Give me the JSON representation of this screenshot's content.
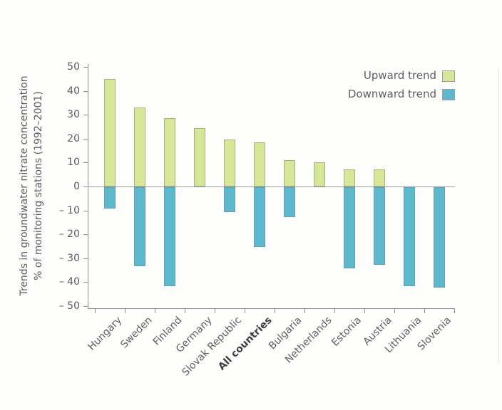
{
  "chart_data": {
    "type": "bar",
    "title": "",
    "ylabel_line1": "Trends in groundwater nitrate concentration",
    "ylabel_line2": "% of monitoring stations (1992–2001)",
    "categories": [
      "Hungary",
      "Sweden",
      "Finland",
      "Germany",
      "Slovak Republic",
      "All countries",
      "Bulgaria",
      "Netherlands",
      "Estonia",
      "Austria",
      "Lithuania",
      "Slovenia"
    ],
    "emphasized_category": "All countries",
    "series": [
      {
        "name": "Upward trend",
        "color": "#d6e897",
        "values": [
          45,
          33,
          28.5,
          24.5,
          19.5,
          18.5,
          11,
          10,
          7,
          7,
          0,
          0
        ]
      },
      {
        "name": "Downward trend",
        "color": "#5cb9cd",
        "values": [
          -9,
          -33,
          -41.5,
          0,
          -10.5,
          -25,
          -12.5,
          0,
          -34,
          -32.5,
          -41.5,
          -42
        ]
      }
    ],
    "ylim": [
      -50,
      50
    ],
    "y_ticks": [
      {
        "value": 50,
        "label": "50"
      },
      {
        "value": 40,
        "label": "40"
      },
      {
        "value": 30,
        "label": "30"
      },
      {
        "value": 20,
        "label": "20"
      },
      {
        "value": 10,
        "label": "10"
      },
      {
        "value": 0,
        "label": "0"
      },
      {
        "value": -10,
        "label": "– 10"
      },
      {
        "value": -20,
        "label": "– 20"
      },
      {
        "value": -30,
        "label": "– 30"
      },
      {
        "value": -40,
        "label": "– 40"
      },
      {
        "value": -50,
        "label": "– 50"
      }
    ],
    "legend_position": "top-right",
    "grid": false,
    "zero_line": true,
    "x_ticks_at_category_boundaries": true
  },
  "colors": {
    "upward": "#d6e897",
    "downward": "#5cb9cd",
    "axis": "#8f8f8f",
    "text": "#5d5d5d",
    "emphasis_text": "#3e3e3e"
  }
}
